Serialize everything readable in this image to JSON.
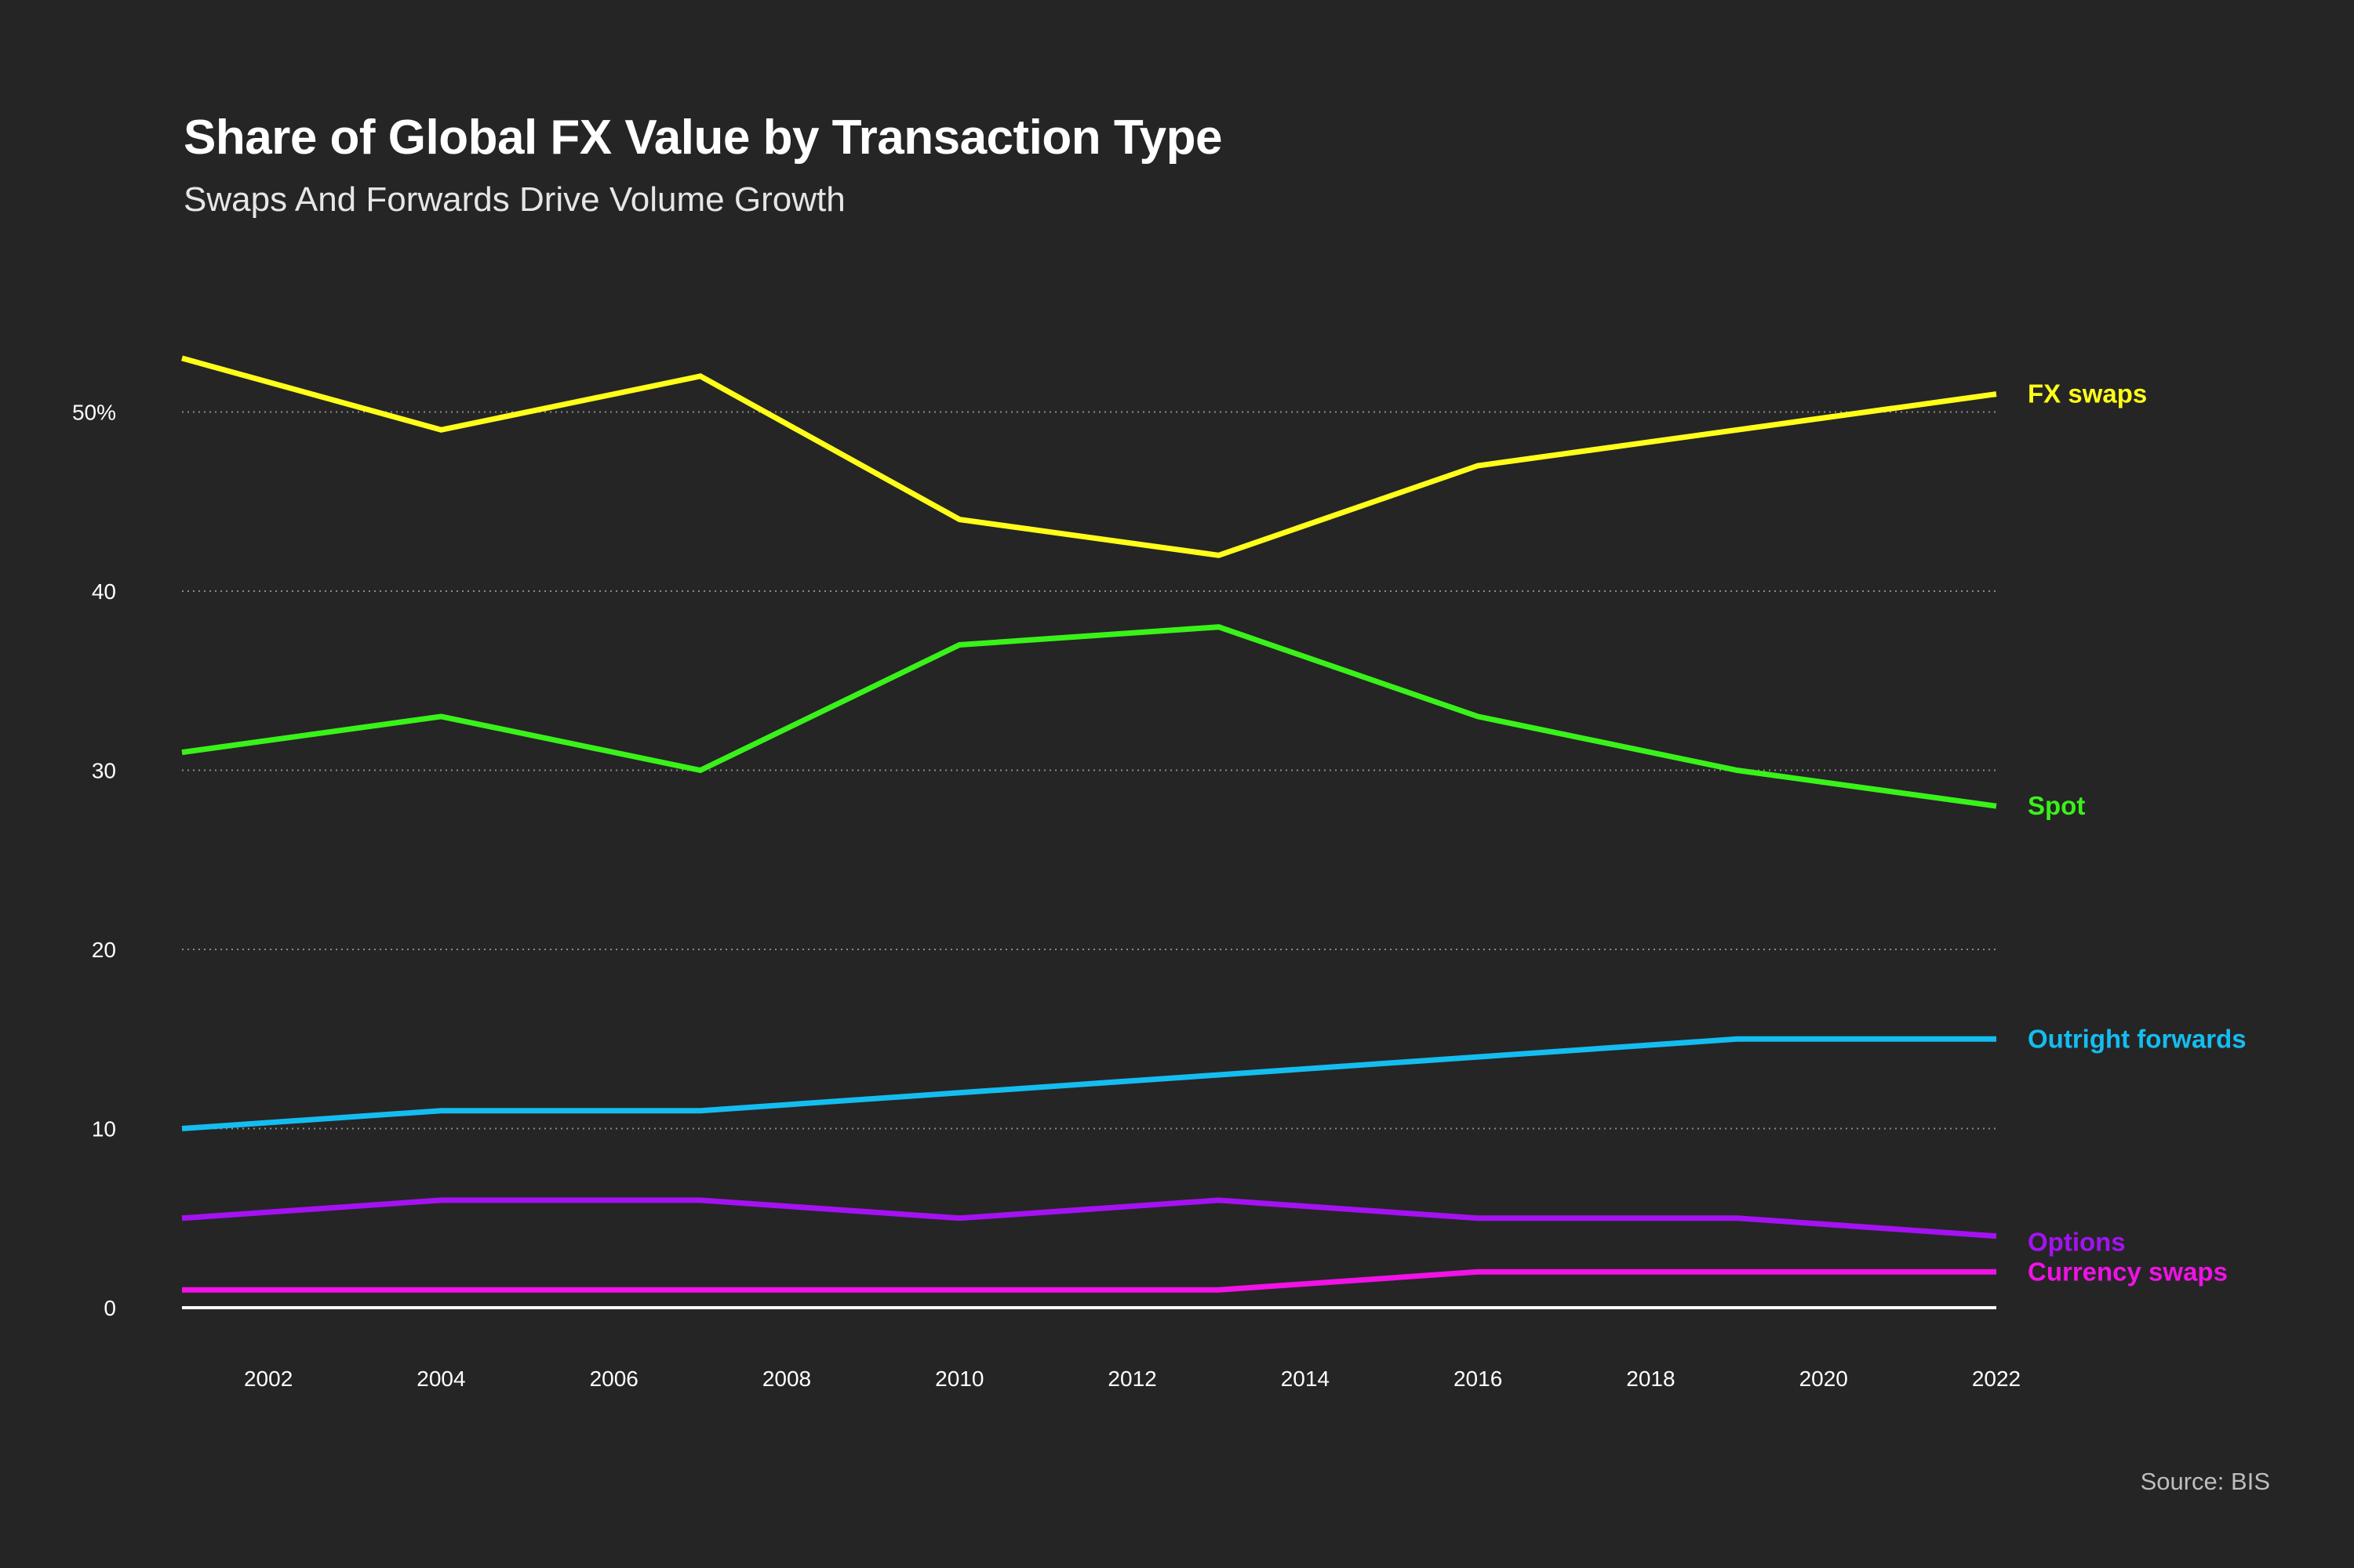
{
  "chart_data": {
    "type": "line",
    "title": "Share of Global FX Value by Transaction Type",
    "subtitle": "Swaps And Forwards Drive Volume Growth",
    "source": "Source: BIS",
    "xlabel": "",
    "ylabel": "",
    "x": [
      2001,
      2004,
      2007,
      2010,
      2013,
      2016,
      2019,
      2022
    ],
    "xlim": [
      2001,
      2022
    ],
    "ylim": [
      0,
      55
    ],
    "x_ticks": [
      "2002",
      "2004",
      "2006",
      "2008",
      "2010",
      "2012",
      "2014",
      "2016",
      "2018",
      "2020",
      "2022"
    ],
    "y_ticks": [
      "0",
      "10",
      "20",
      "30",
      "40",
      "50%"
    ],
    "grid": "horizontal dotted",
    "legend": "direct labels at line ends (right)",
    "series": [
      {
        "name": "FX swaps",
        "color": "#ffff1a",
        "values": [
          53,
          49,
          52,
          44,
          42,
          47,
          49,
          51
        ]
      },
      {
        "name": "Spot",
        "color": "#39f21a",
        "values": [
          31,
          33,
          30,
          37,
          38,
          33,
          30,
          28
        ]
      },
      {
        "name": "Outright forwards",
        "color": "#14bdf0",
        "values": [
          10,
          11,
          11,
          12,
          13,
          14,
          15,
          15
        ]
      },
      {
        "name": "Options",
        "color": "#a412f2",
        "values": [
          5,
          6,
          6,
          5,
          6,
          5,
          5,
          4
        ]
      },
      {
        "name": "Currency swaps",
        "color": "#f012e6",
        "values": [
          1,
          1,
          1,
          1,
          1,
          2,
          2,
          2
        ]
      }
    ]
  }
}
